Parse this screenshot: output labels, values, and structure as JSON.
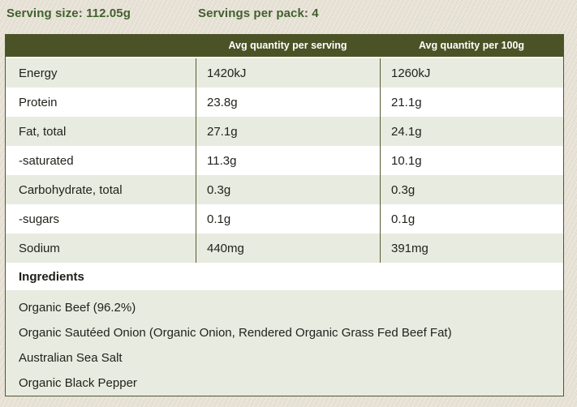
{
  "colors": {
    "page_background": "#e8e2d5",
    "accent_green_text": "#41612d",
    "table_header_background": "#4b5326",
    "table_header_text": "#ffffff",
    "row_alt_background": "#e8ebdf",
    "row_background": "#ffffff",
    "border": "#51572d"
  },
  "serving_info": {
    "serving_size": "Serving size: 112.05g",
    "servings_per_pack": "Servings per pack: 4"
  },
  "table": {
    "headers": {
      "per_serving": "Avg quantity per serving",
      "per_100g": "Avg quantity per 100g"
    },
    "rows": [
      {
        "label": "Energy",
        "per_serving": "1420kJ",
        "per_100g": "1260kJ"
      },
      {
        "label": "Protein",
        "per_serving": "23.8g",
        "per_100g": "21.1g"
      },
      {
        "label": "Fat, total",
        "per_serving": "27.1g",
        "per_100g": "24.1g"
      },
      {
        "label": "-saturated",
        "per_serving": "11.3g",
        "per_100g": "10.1g"
      },
      {
        "label": "Carbohydrate, total",
        "per_serving": "0.3g",
        "per_100g": "0.3g"
      },
      {
        "label": "-sugars",
        "per_serving": "0.1g",
        "per_100g": "0.1g"
      },
      {
        "label": "Sodium",
        "per_serving": "440mg",
        "per_100g": "391mg"
      }
    ]
  },
  "ingredients": {
    "heading": "Ingredients",
    "items": [
      "Organic Beef (96.2%)",
      "Organic Sautéed Onion (Organic Onion, Rendered Organic Grass Fed Beef Fat)",
      "Australian Sea Salt",
      "Organic Black Pepper"
    ]
  }
}
